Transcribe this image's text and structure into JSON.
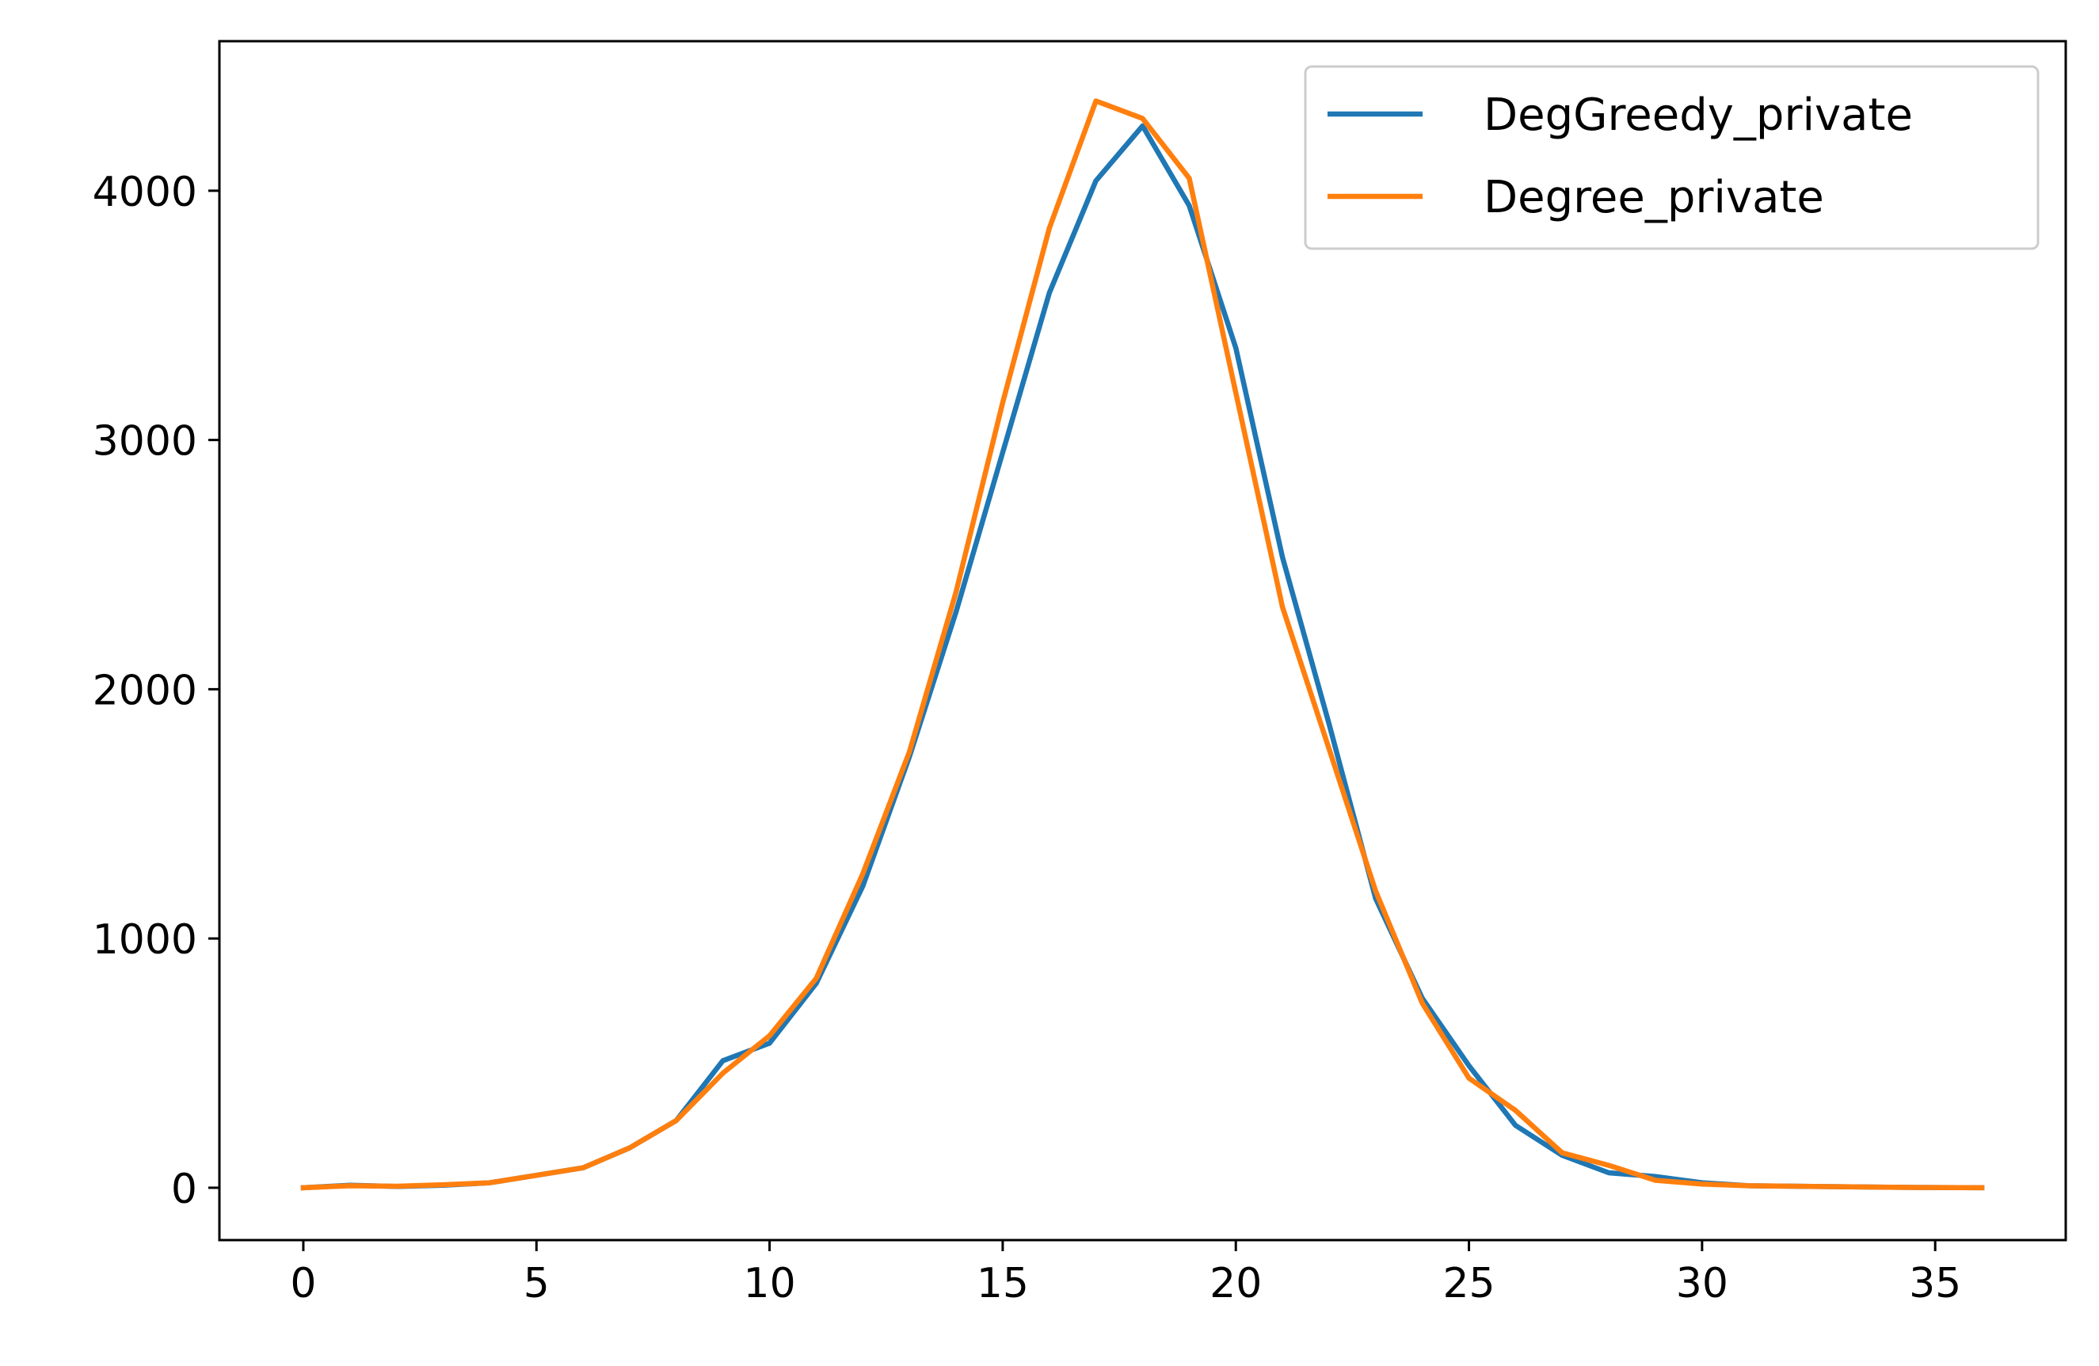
{
  "chart_data": {
    "type": "line",
    "title": "",
    "xlabel": "",
    "ylabel": "",
    "xlim": [
      -1.8,
      37.8
    ],
    "ylim": [
      -210,
      4600
    ],
    "xticks": [
      0,
      5,
      10,
      15,
      20,
      25,
      30,
      35
    ],
    "yticks": [
      0,
      1000,
      2000,
      3000,
      4000
    ],
    "grid": false,
    "legend_position": "top-right",
    "x": [
      0,
      1,
      2,
      3,
      4,
      5,
      6,
      7,
      8,
      9,
      10,
      11,
      12,
      13,
      14,
      15,
      16,
      17,
      18,
      19,
      20,
      21,
      22,
      23,
      24,
      25,
      26,
      27,
      28,
      29,
      30,
      31,
      32,
      33,
      34,
      35,
      36
    ],
    "series": [
      {
        "name": "DegGreedy_private",
        "color": "#1f77b4",
        "values": [
          0,
          10,
          5,
          10,
          20,
          50,
          80,
          160,
          270,
          510,
          580,
          820,
          1210,
          1730,
          2310,
          2950,
          3590,
          4040,
          4260,
          3940,
          3370,
          2530,
          1860,
          1160,
          760,
          490,
          250,
          130,
          60,
          45,
          20,
          8,
          6,
          4,
          2,
          1,
          0
        ]
      },
      {
        "name": "Degree_private",
        "color": "#ff7f0e",
        "values": [
          0,
          8,
          6,
          12,
          20,
          50,
          80,
          160,
          270,
          460,
          610,
          840,
          1260,
          1750,
          2390,
          3150,
          3850,
          4360,
          4290,
          4050,
          3190,
          2330,
          1760,
          1190,
          740,
          440,
          310,
          140,
          90,
          30,
          15,
          8,
          6,
          4,
          2,
          1,
          0
        ]
      }
    ]
  }
}
